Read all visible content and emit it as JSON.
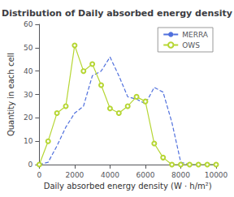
{
  "chart_data": {
    "type": "line",
    "title": "Distribution of Daily absorbed energy density",
    "xlabel": "Daily absorbed energy density (W · h/m²)",
    "ylabel": "Quantity in each cell",
    "x": [
      0,
      500,
      1000,
      1500,
      2000,
      2500,
      3000,
      3500,
      4000,
      4500,
      5000,
      5500,
      6000,
      6500,
      7000,
      7500,
      8000,
      8500,
      9000,
      9500,
      10000
    ],
    "series": [
      {
        "name": "MERRA",
        "line_style": "dashed",
        "marker": "none",
        "values": [
          0,
          1,
          8,
          16,
          22,
          25,
          38,
          40,
          46,
          38,
          29,
          28,
          26,
          33,
          31,
          18,
          1,
          0,
          0,
          0,
          0
        ]
      },
      {
        "name": "OWS",
        "line_style": "solid",
        "marker": "circle",
        "values": [
          0,
          10,
          22,
          25,
          51,
          40,
          43,
          34,
          24,
          22,
          25,
          29,
          27,
          9,
          3,
          0,
          0,
          0,
          0,
          0,
          0
        ]
      }
    ],
    "xlim": [
      0,
      10000
    ],
    "ylim": [
      0,
      60
    ],
    "xticks": [
      0,
      2000,
      4000,
      6000,
      8000,
      10000
    ],
    "yticks": [
      0,
      10,
      20,
      30,
      40,
      50,
      60
    ],
    "grid": false,
    "legend": "upper right"
  }
}
